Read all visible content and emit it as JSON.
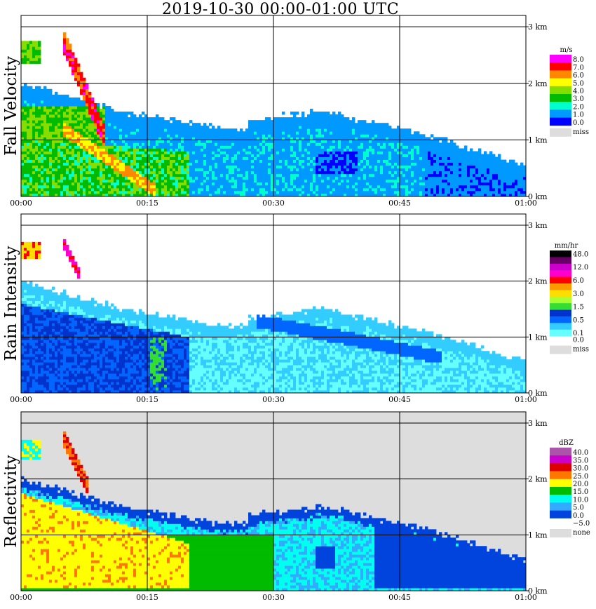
{
  "title": "2019-10-30   00:00-01:00 UTC",
  "chart_data": [
    {
      "type": "heatmap",
      "ylabel": "Fall Velocity",
      "x_ticks": [
        "00:00",
        "00:15",
        "00:30",
        "00:45",
        "01:00"
      ],
      "y_ticks": [
        "0 km",
        "1 km",
        "2 km",
        "3 km"
      ],
      "legend": {
        "unit": "m/s",
        "entries": [
          {
            "label": "8.0",
            "color": "#ff00ff"
          },
          {
            "label": "7.0",
            "color": "#ff0000"
          },
          {
            "label": "6.0",
            "color": "#ff8800"
          },
          {
            "label": "5.0",
            "color": "#ffff00"
          },
          {
            "label": "4.0",
            "color": "#88dd00"
          },
          {
            "label": "3.0",
            "color": "#00bb00"
          },
          {
            "label": "2.0",
            "color": "#00ffcc"
          },
          {
            "label": "1.0",
            "color": "#0099ff"
          },
          {
            "label": "0.0",
            "color": "#0000ff"
          }
        ],
        "missing_label": "miss",
        "missing_color": "#dddddd"
      }
    },
    {
      "type": "heatmap",
      "ylabel": "Rain Intensity",
      "x_ticks": [
        "00:00",
        "00:15",
        "00:30",
        "00:45",
        "01:00"
      ],
      "y_ticks": [
        "0 km",
        "1 km",
        "2 km",
        "3 km"
      ],
      "legend": {
        "unit": "mm/hr",
        "entries": [
          {
            "label": "48.0",
            "color": "#000000"
          },
          {
            "label": "",
            "color": "#660066"
          },
          {
            "label": "12.0",
            "color": "#cc00cc"
          },
          {
            "label": "",
            "color": "#ff00cc"
          },
          {
            "label": "6.0",
            "color": "#ff0000"
          },
          {
            "label": "",
            "color": "#ff9900"
          },
          {
            "label": "3.0",
            "color": "#ffdd00"
          },
          {
            "label": "",
            "color": "#aaff33"
          },
          {
            "label": "1.5",
            "color": "#33dd33"
          },
          {
            "label": "",
            "color": "#0033cc"
          },
          {
            "label": "0.5",
            "color": "#0066ff"
          },
          {
            "label": "",
            "color": "#33ccff"
          },
          {
            "label": "0.1",
            "color": "#66ffff"
          },
          {
            "label": "0.0",
            "color": "#ffffff"
          }
        ],
        "missing_label": "miss",
        "missing_color": "#dddddd"
      }
    },
    {
      "type": "heatmap",
      "ylabel": "Reflectivity",
      "x_ticks": [
        "00:00",
        "00:15",
        "00:30",
        "00:45",
        "01:00"
      ],
      "y_ticks": [
        "0 km",
        "1 km",
        "2 km",
        "3 km"
      ],
      "legend": {
        "unit": "dBZ",
        "entries": [
          {
            "label": "40.0",
            "color": "#aa55aa"
          },
          {
            "label": "35.0",
            "color": "#cc00cc"
          },
          {
            "label": "30.0",
            "color": "#dd0000"
          },
          {
            "label": "25.0",
            "color": "#ff7700"
          },
          {
            "label": "20.0",
            "color": "#ffff00"
          },
          {
            "label": "15.0",
            "color": "#00bb00"
          },
          {
            "label": "10.0",
            "color": "#00ffee"
          },
          {
            "label": "5.0",
            "color": "#33aaff"
          },
          {
            "label": "0.0",
            "color": "#0044dd"
          },
          {
            "label": "−5.0",
            "color": "#ffffff"
          }
        ],
        "missing_label": "none",
        "missing_color": "#dddddd"
      }
    }
  ]
}
